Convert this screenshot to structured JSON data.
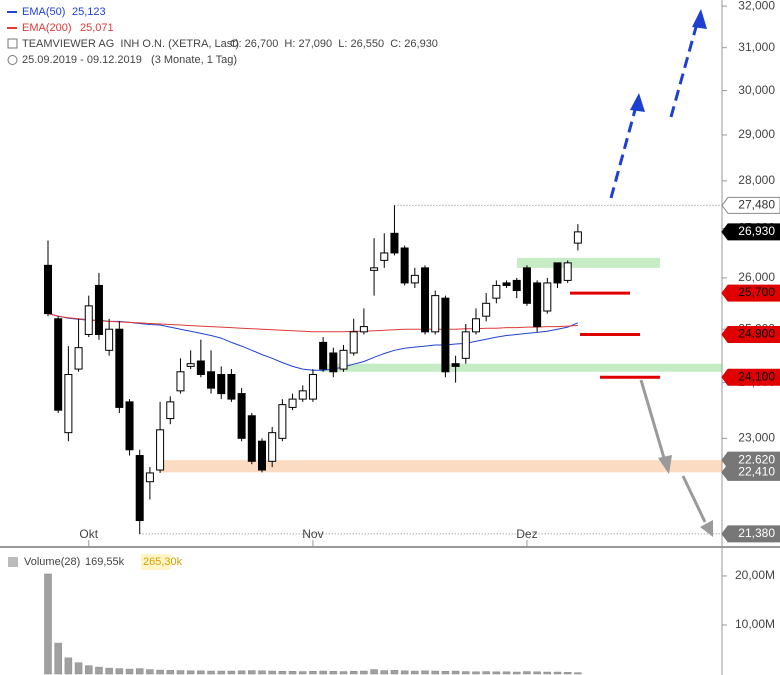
{
  "chart_data": {
    "type": "candlestick",
    "title": "TEAMVIEWER AG  INH O.N. (XETRA, Last)",
    "quote": "O: 26,700  H: 27,090  L: 26,550  C: 26,930",
    "period": "25.09.2019 - 09.12.2019   (3 Monate, 1 Tag)",
    "categories": [
      null,
      null,
      null,
      null,
      "Okt",
      null,
      null,
      null,
      null,
      null,
      null,
      null,
      null,
      null,
      null,
      null,
      null,
      null,
      null,
      null,
      null,
      null,
      null,
      null,
      null,
      null,
      "Nov",
      null,
      null,
      null,
      null,
      null,
      null,
      null,
      null,
      null,
      null,
      null,
      null,
      null,
      null,
      null,
      null,
      null,
      null,
      null,
      null,
      "Dez",
      null,
      null,
      null,
      null,
      null
    ],
    "open": [
      26250,
      25200,
      23100,
      24250,
      24900,
      25850,
      24600,
      25000,
      23650,
      22700,
      22250,
      22450,
      23350,
      23850,
      24300,
      24400,
      24200,
      24150,
      24150,
      23800,
      23400,
      22950,
      22600,
      23000,
      23550,
      23700,
      23700,
      24750,
      24550,
      24250,
      24550,
      24950,
      26150,
      26350,
      26900,
      26600,
      25900,
      26200,
      24950,
      25600,
      24350,
      24450,
      24950,
      25250,
      25600,
      25900,
      25950,
      26200,
      25900,
      25350,
      26300,
      25950,
      26700
    ],
    "high": [
      26750,
      25250,
      24680,
      25200,
      25650,
      26100,
      25200,
      25150,
      23700,
      22800,
      22500,
      23650,
      23750,
      24450,
      24600,
      24800,
      24600,
      24300,
      24250,
      23900,
      23450,
      23000,
      23200,
      23700,
      23800,
      23950,
      24250,
      24850,
      24650,
      24700,
      25200,
      25400,
      26800,
      26900,
      27480,
      26650,
      26200,
      26250,
      25750,
      25650,
      24500,
      25100,
      25400,
      25700,
      25950,
      25950,
      26000,
      26250,
      25950,
      26000,
      26300,
      26350,
      27090
    ],
    "low": [
      25250,
      23450,
      22950,
      24200,
      24850,
      24800,
      24500,
      23450,
      22700,
      21380,
      21950,
      22400,
      23250,
      23800,
      24250,
      24100,
      23800,
      23700,
      23650,
      22950,
      22550,
      22410,
      22500,
      22950,
      23500,
      23650,
      23650,
      24200,
      24100,
      24200,
      24500,
      24900,
      25650,
      26200,
      26450,
      25850,
      25800,
      24900,
      24900,
      24100,
      24000,
      24350,
      24900,
      25150,
      25500,
      25800,
      25600,
      25450,
      24950,
      25300,
      25800,
      25900,
      26550
    ],
    "close": [
      25300,
      23500,
      24150,
      24650,
      25450,
      24900,
      25000,
      23550,
      22800,
      21600,
      22400,
      23150,
      23650,
      24200,
      24350,
      24150,
      23900,
      23800,
      23700,
      23000,
      22600,
      22450,
      23100,
      23600,
      23700,
      23850,
      24150,
      24250,
      24200,
      24600,
      24950,
      25050,
      26200,
      26500,
      26500,
      25900,
      26050,
      24950,
      25650,
      24200,
      24300,
      24950,
      25200,
      25500,
      25850,
      25850,
      25750,
      25500,
      25050,
      25900,
      25900,
      26300,
      26930
    ],
    "up_color": "#ffffff",
    "down_color": "#000000",
    "series": [
      {
        "name": "EMA(50)",
        "last_label": "25,123",
        "color": "#2142d4",
        "values": [
          25300,
          25250,
          25210,
          25190,
          25170,
          25170,
          25150,
          25150,
          25130,
          25110,
          25090,
          25080,
          25040,
          25000,
          24960,
          24920,
          24880,
          24830,
          24750,
          24680,
          24600,
          24520,
          24450,
          24370,
          24300,
          24250,
          24230,
          24230,
          24250,
          24290,
          24340,
          24390,
          24470,
          24540,
          24600,
          24640,
          24660,
          24680,
          24700,
          24700,
          24720,
          24730,
          24770,
          24810,
          24850,
          24880,
          24900,
          24920,
          24940,
          24960,
          25000,
          25040,
          25123
        ]
      },
      {
        "name": "EMA(200)",
        "last_label": "25,071",
        "color": "#e03a3a",
        "values": [
          25300,
          25250,
          25220,
          25200,
          25180,
          25160,
          25150,
          25140,
          25130,
          25120,
          25110,
          25100,
          25090,
          25080,
          25070,
          25060,
          25050,
          25040,
          25030,
          25020,
          25010,
          25000,
          24990,
          24980,
          24970,
          24960,
          24950,
          24950,
          24950,
          24950,
          24960,
          24960,
          24970,
          24980,
          24990,
          25000,
          25000,
          25000,
          25000,
          25000,
          25000,
          25010,
          25010,
          25020,
          25020,
          25030,
          25030,
          25040,
          25040,
          25050,
          25050,
          25060,
          25071
        ]
      }
    ],
    "log_scale": true,
    "ylim": [
      21200,
      32150
    ],
    "yticks": [
      {
        "value": 23000,
        "label": "23,000"
      },
      {
        "value": 24000,
        "label": "24,000"
      },
      {
        "value": 25000,
        "label": "25,000"
      },
      {
        "value": 26000,
        "label": "26,000"
      },
      {
        "value": 27000,
        "label": "27,000"
      },
      {
        "value": 28000,
        "label": "28,000"
      },
      {
        "value": 29000,
        "label": "29,000"
      },
      {
        "value": 30000,
        "label": "30,000"
      },
      {
        "value": 31000,
        "label": "31,000"
      },
      {
        "value": 32000,
        "label": "32,000"
      }
    ],
    "zones": [
      {
        "low": 26200,
        "high": 26400,
        "color": "#c6ecc6"
      },
      {
        "low": 24200,
        "high": 24350,
        "color": "#c6ecc6"
      },
      {
        "low": 22410,
        "high": 22620,
        "color": "#fbdcc2"
      }
    ],
    "levels": [
      {
        "value": 27480,
        "label": "27,480",
        "style": "outline"
      },
      {
        "value": 26930,
        "label": "26,930",
        "style": "current"
      },
      {
        "value": 25700,
        "label": "25,700",
        "style": "red"
      },
      {
        "value": 24900,
        "label": "24,900",
        "style": "red"
      },
      {
        "value": 24100,
        "label": "24,100",
        "style": "red"
      },
      {
        "value": 22620,
        "label": "22,620",
        "style": "gray"
      },
      {
        "value": 22410,
        "label": "22,410",
        "style": "gray"
      },
      {
        "value": 21380,
        "label": "21,380",
        "style": "dotted-gray"
      }
    ],
    "volume": {
      "type": "bar",
      "name": "Volume(28)",
      "average_label": "169,55k",
      "last_label": "265,30k",
      "color": "#a0a0a0",
      "values": [
        20400000,
        6300000,
        3300000,
        2300000,
        1700000,
        1400000,
        1200000,
        1100000,
        1000000,
        1100000,
        900000,
        800000,
        750000,
        700000,
        650000,
        650000,
        600000,
        600000,
        600000,
        650000,
        700000,
        650000,
        600000,
        550000,
        550000,
        500000,
        550000,
        600000,
        550000,
        500000,
        550000,
        600000,
        900000,
        700000,
        750000,
        650000,
        600000,
        650000,
        600000,
        550000,
        600000,
        500000,
        450000,
        500000,
        450000,
        450000,
        400000,
        500000,
        450000,
        400000,
        400000,
        350000,
        265300
      ],
      "ylim": [
        0,
        25700000
      ],
      "yticks": [
        {
          "value": 10000000,
          "label": "10,00M"
        },
        {
          "value": 20000000,
          "label": "20,00M"
        }
      ]
    }
  }
}
